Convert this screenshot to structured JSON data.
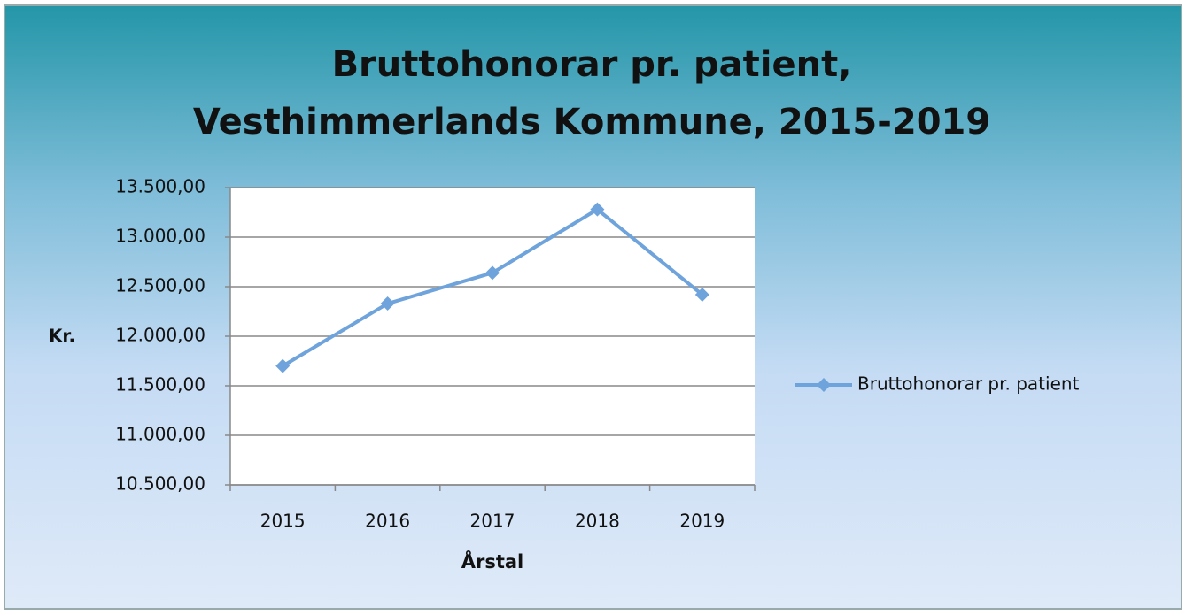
{
  "chart_data": {
    "type": "line",
    "title": [
      "Bruttohonorar pr. patient,",
      "Vesthimmerlands Kommune, 2015-2019"
    ],
    "x_label": "Årstal",
    "y_label": "Kr.",
    "categories": [
      "2015",
      "2016",
      "2017",
      "2018",
      "2019"
    ],
    "series": [
      {
        "name": "Bruttohonorar pr. patient",
        "color": "#6fa3dc",
        "values": [
          11700,
          12330,
          12640,
          13280,
          12420
        ]
      }
    ],
    "ylim": [
      10500,
      13500
    ],
    "yticks": [
      {
        "value": 10500,
        "label": "10.500,00"
      },
      {
        "value": 11000,
        "label": "11.000,00"
      },
      {
        "value": 11500,
        "label": "11.500,00"
      },
      {
        "value": 12000,
        "label": "12.000,00"
      },
      {
        "value": 12500,
        "label": "12.500,00"
      },
      {
        "value": 13000,
        "label": "13.000,00"
      },
      {
        "value": 13500,
        "label": "13.500,00"
      }
    ],
    "grid": true,
    "legend": "right"
  }
}
